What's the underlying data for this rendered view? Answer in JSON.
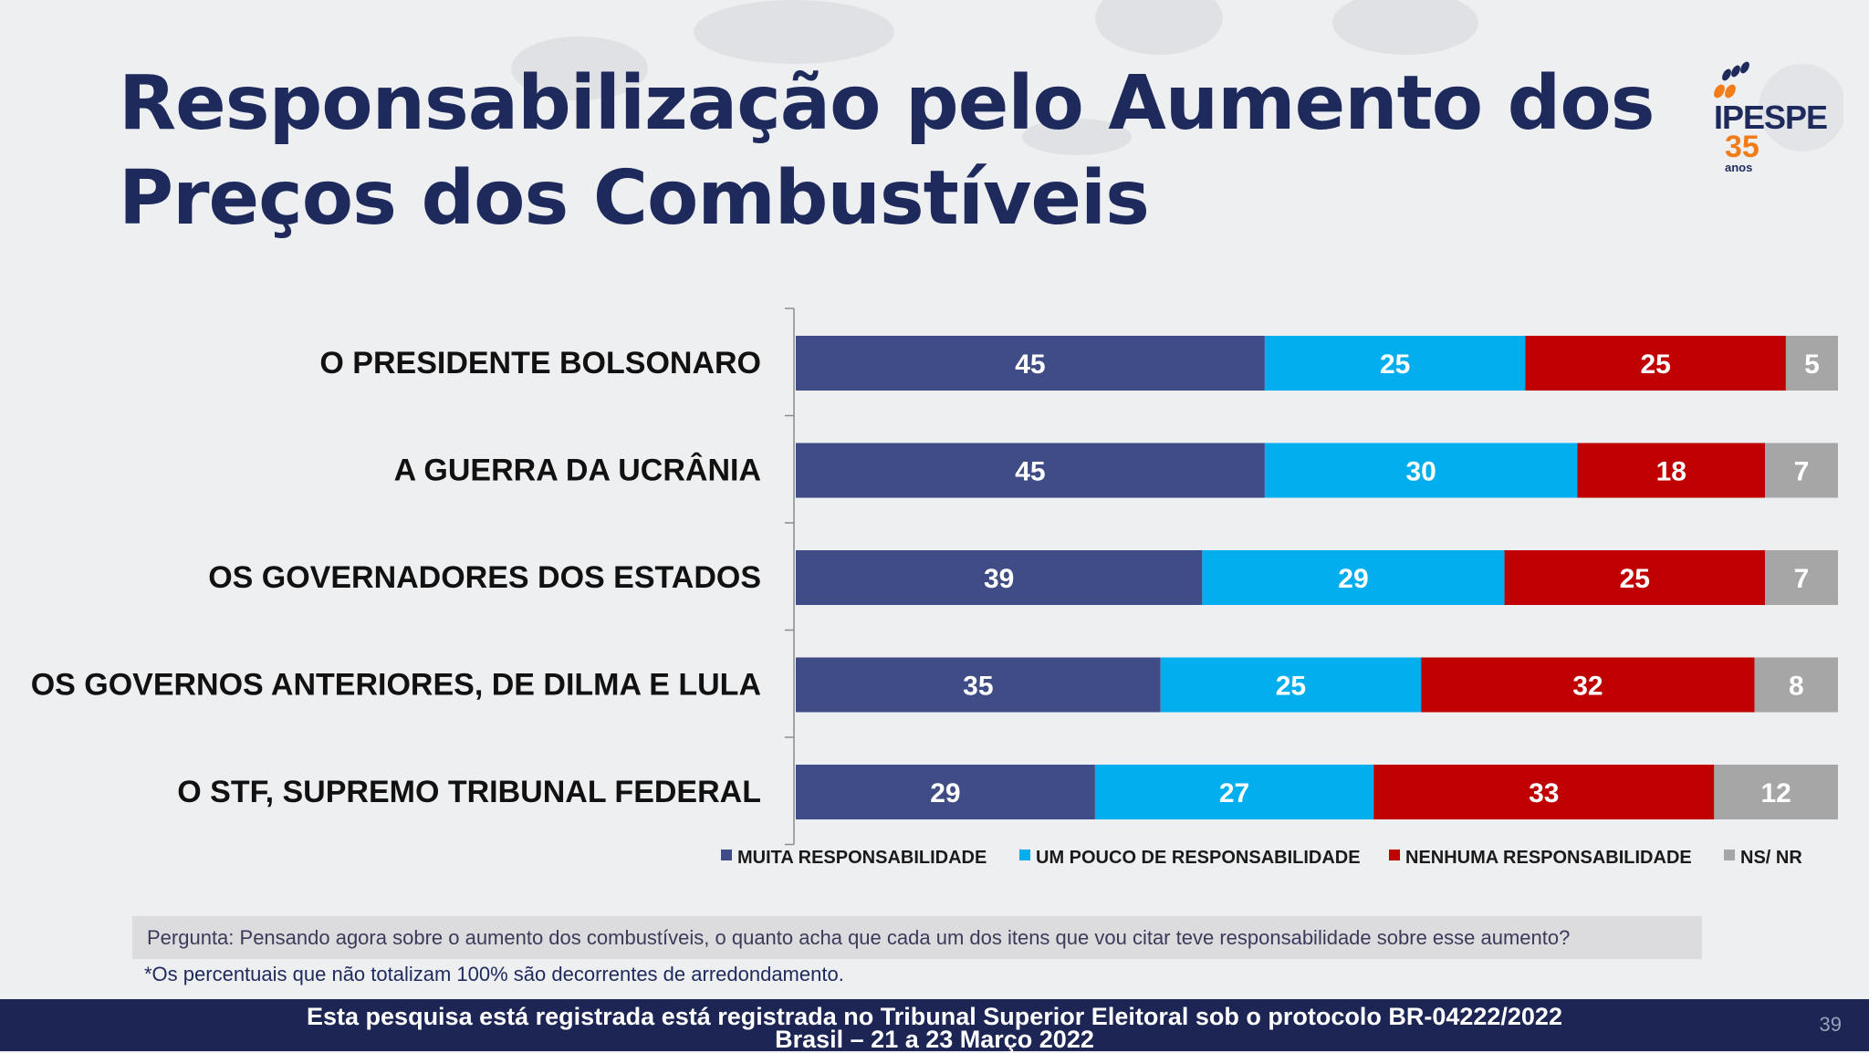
{
  "slide": {
    "title_line1": "Responsabilização pelo Aumento dos",
    "title_line2": "Preços dos Combustíveis",
    "logo": {
      "name": "IPESPE",
      "number": "35",
      "subtitle": "anos",
      "accent_color": "#f07d1a"
    },
    "question": "Pergunta:  Pensando agora sobre o aumento dos combustíveis, o quanto acha que cada um dos itens que vou citar teve responsabilidade sobre esse aumento?",
    "footnote": "*Os percentuais que não totalizam 100% são decorrentes de arredondamento.",
    "footer_line1": "Esta pesquisa está registrada está registrada no Tribunal Superior Eleitoral sob o protocolo BR-04222/2022",
    "footer_line2": "Brasil – 21 a 23 Março 2022",
    "page_number": "39"
  },
  "chart_data": {
    "type": "bar",
    "orientation": "horizontal",
    "stacked": true,
    "title": "",
    "xlabel": "",
    "ylabel": "",
    "categories": [
      "O PRESIDENTE BOLSONARO",
      "A GUERRA DA UCRÂNIA",
      "OS GOVERNADORES DOS ESTADOS",
      "OS GOVERNOS ANTERIORES, DE DILMA E LULA",
      "O STF, SUPREMO TRIBUNAL FEDERAL"
    ],
    "series": [
      {
        "name": "MUITA RESPONSABILIDADE",
        "color": "#3f4c85",
        "values": [
          45,
          45,
          39,
          35,
          29
        ]
      },
      {
        "name": "UM POUCO DE RESPONSABILIDADE",
        "color": "#03aeef",
        "values": [
          25,
          30,
          29,
          25,
          27
        ]
      },
      {
        "name": "NENHUMA RESPONSABILIDADE",
        "color": "#c00000",
        "values": [
          25,
          18,
          25,
          32,
          33
        ]
      },
      {
        "name": "NS/ NR",
        "color": "#a6a6a6",
        "values": [
          5,
          7,
          7,
          8,
          12
        ]
      }
    ],
    "grid": false,
    "legend_position": "bottom"
  }
}
